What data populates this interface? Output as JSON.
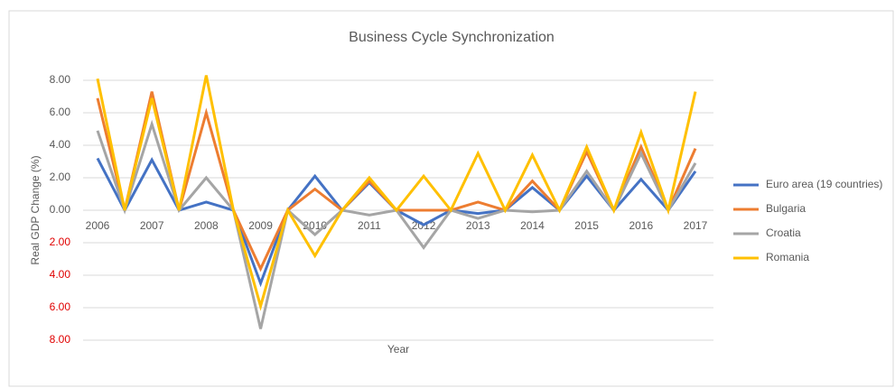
{
  "chart_data": {
    "type": "line",
    "title": "Business Cycle Synchronization",
    "x_label": "Year",
    "y_label": "Real GDP Change (%)",
    "categories": [
      "2006",
      null,
      "2007",
      null,
      "2008",
      null,
      "2009",
      null,
      "2010",
      null,
      "2011",
      null,
      "2012",
      null,
      "2013",
      null,
      "2014",
      null,
      "2015",
      null,
      "2016",
      null,
      "2017"
    ],
    "series": [
      {
        "name": "Euro area (19 countries)",
        "color": "#4472c4",
        "values": [
          3.2,
          0,
          3.1,
          0,
          0.5,
          0,
          -4.5,
          0,
          2.1,
          0,
          1.7,
          0,
          -0.9,
          0,
          -0.2,
          0,
          1.4,
          0,
          2.1,
          0,
          1.9,
          0,
          2.4
        ]
      },
      {
        "name": "Bulgaria",
        "color": "#ed7d31",
        "values": [
          6.9,
          0,
          7.3,
          0,
          6.0,
          0,
          -3.6,
          0,
          1.3,
          0,
          1.8,
          0,
          0.0,
          0,
          0.5,
          0,
          1.8,
          0,
          3.6,
          0,
          3.9,
          0,
          3.8
        ]
      },
      {
        "name": "Croatia",
        "color": "#a5a5a5",
        "values": [
          4.9,
          0,
          5.3,
          0,
          2.0,
          0,
          -7.3,
          0,
          -1.5,
          0,
          -0.3,
          0,
          -2.3,
          0,
          -0.5,
          0,
          -0.1,
          0,
          2.4,
          0,
          3.5,
          0,
          2.9
        ]
      },
      {
        "name": "Romania",
        "color": "#ffc000",
        "values": [
          8.1,
          0,
          6.9,
          0,
          8.3,
          0,
          -5.9,
          0,
          -2.8,
          0,
          2.0,
          0,
          2.1,
          0,
          3.5,
          0,
          3.4,
          0,
          3.9,
          0,
          4.8,
          0,
          7.3
        ]
      }
    ],
    "ylim": [
      -8,
      8
    ],
    "yticks": [
      {
        "value": 8,
        "label": "8.00"
      },
      {
        "value": 6,
        "label": "6.00"
      },
      {
        "value": 4,
        "label": "4.00"
      },
      {
        "value": 2,
        "label": "2.00"
      },
      {
        "value": 0,
        "label": "0.00"
      },
      {
        "value": -2,
        "label": "2.00"
      },
      {
        "value": -4,
        "label": "4.00"
      },
      {
        "value": -6,
        "label": "6.00"
      },
      {
        "value": -8,
        "label": "8.00"
      }
    ],
    "negative_tick_color": "#e00000",
    "grid": true,
    "legend": "right"
  }
}
